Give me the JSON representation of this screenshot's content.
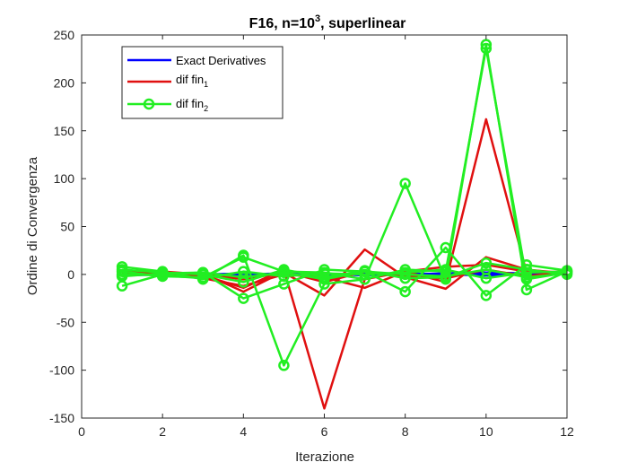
{
  "chart_data": {
    "type": "line",
    "title": {
      "prefix": "F16, n=10",
      "superscript": "3",
      "suffix": ", superlinear"
    },
    "xlabel": "Iterazione",
    "ylabel": "Ordine di Convergenza",
    "xlim": [
      0,
      12
    ],
    "ylim": [
      -150,
      250
    ],
    "xticks": [
      0,
      2,
      4,
      6,
      8,
      10,
      12
    ],
    "yticks": [
      -150,
      -100,
      -50,
      0,
      50,
      100,
      150,
      200,
      250
    ],
    "grid": false,
    "legend": {
      "placement": "top-left",
      "entries": [
        {
          "base": "Exact Derivatives",
          "sub": "",
          "color": "#0000ff",
          "marker": "none"
        },
        {
          "base": "dif fin",
          "sub": "1",
          "color": "#e01010",
          "marker": "none"
        },
        {
          "base": "dif fin",
          "sub": "2",
          "color": "#22ee22",
          "marker": "circle"
        }
      ]
    },
    "series": [
      {
        "group": "exact",
        "color": "#0000ff",
        "marker": "none",
        "x": [
          1,
          2,
          3,
          4,
          5,
          6,
          7,
          8,
          9,
          10,
          11,
          12
        ],
        "y": [
          2,
          1,
          -1,
          0,
          1,
          -1,
          1,
          0,
          1,
          2,
          1,
          1
        ]
      },
      {
        "group": "exact",
        "color": "#0000ff",
        "marker": "none",
        "x": [
          1,
          2,
          3,
          4,
          5,
          6,
          7,
          8,
          9,
          10,
          11,
          12
        ],
        "y": [
          -1,
          0,
          1,
          -2,
          0,
          1,
          -1,
          1,
          0,
          -1,
          0,
          1
        ]
      },
      {
        "group": "exact",
        "color": "#0000ff",
        "marker": "none",
        "x": [
          1,
          2,
          3,
          4,
          5,
          6,
          7,
          8,
          9,
          10,
          11,
          12
        ],
        "y": [
          0,
          1,
          0,
          1,
          -1,
          0,
          0,
          -1,
          1,
          0,
          1,
          0
        ]
      },
      {
        "group": "dif_fin_1",
        "color": "#e01010",
        "marker": "none",
        "x": [
          1,
          2,
          3,
          4,
          5,
          6,
          7,
          8,
          9,
          10,
          11,
          12
        ],
        "y": [
          3,
          2,
          -1,
          -14,
          5,
          -140,
          -5,
          3,
          -8,
          162,
          2,
          3
        ]
      },
      {
        "group": "dif_fin_1",
        "color": "#e01010",
        "marker": "none",
        "x": [
          1,
          2,
          3,
          4,
          5,
          6,
          7,
          8,
          9,
          10,
          11,
          12
        ],
        "y": [
          1,
          3,
          0,
          -5,
          2,
          -22,
          26,
          -3,
          -15,
          18,
          5,
          1
        ]
      },
      {
        "group": "dif_fin_1",
        "color": "#e01010",
        "marker": "none",
        "x": [
          1,
          2,
          3,
          4,
          5,
          6,
          7,
          8,
          9,
          10,
          11,
          12
        ],
        "y": [
          0,
          2,
          -4,
          -12,
          0,
          -3,
          -14,
          3,
          8,
          10,
          3,
          2
        ]
      },
      {
        "group": "dif_fin_1",
        "color": "#e01010",
        "marker": "none",
        "x": [
          1,
          2,
          3,
          4,
          5,
          6,
          7,
          8,
          9,
          10,
          11,
          12
        ],
        "y": [
          2,
          0,
          1,
          -18,
          3,
          -8,
          3,
          -2,
          -4,
          5,
          -2,
          3
        ]
      },
      {
        "group": "dif_fin_2",
        "color": "#22ee22",
        "marker": "circle",
        "x": [
          1,
          2,
          3,
          4,
          5,
          6,
          7,
          8,
          9,
          10,
          11,
          12
        ],
        "y": [
          8,
          3,
          -5,
          20,
          -95,
          -10,
          -5,
          95,
          -5,
          240,
          -16,
          3
        ]
      },
      {
        "group": "dif_fin_2",
        "color": "#22ee22",
        "marker": "circle",
        "x": [
          1,
          2,
          3,
          4,
          5,
          6,
          7,
          8,
          9,
          10,
          11,
          12
        ],
        "y": [
          -12,
          0,
          2,
          -25,
          -10,
          5,
          3,
          -18,
          28,
          -22,
          10,
          4
        ]
      },
      {
        "group": "dif_fin_2",
        "color": "#22ee22",
        "marker": "circle",
        "x": [
          1,
          2,
          3,
          4,
          5,
          6,
          7,
          8,
          9,
          10,
          11,
          12
        ],
        "y": [
          3,
          -2,
          -3,
          18,
          3,
          2,
          -5,
          5,
          3,
          236,
          -5,
          2
        ]
      },
      {
        "group": "dif_fin_2",
        "color": "#22ee22",
        "marker": "circle",
        "x": [
          1,
          2,
          3,
          4,
          5,
          6,
          7,
          8,
          9,
          10,
          11,
          12
        ],
        "y": [
          5,
          2,
          0,
          -8,
          5,
          -3,
          4,
          -4,
          -3,
          12,
          5,
          0
        ]
      },
      {
        "group": "dif_fin_2",
        "color": "#22ee22",
        "marker": "circle",
        "x": [
          1,
          2,
          3,
          4,
          5,
          6,
          7,
          8,
          9,
          10,
          11,
          12
        ],
        "y": [
          0,
          -1,
          -4,
          3,
          -2,
          1,
          0,
          2,
          5,
          -4,
          2,
          3
        ]
      },
      {
        "group": "dif_fin_2",
        "color": "#22ee22",
        "marker": "circle",
        "x": [
          1,
          2,
          3,
          4,
          5,
          6,
          7,
          8,
          9,
          10,
          11,
          12
        ],
        "y": [
          -2,
          1,
          2,
          -3,
          2,
          -5,
          3,
          0,
          -2,
          5,
          -3,
          1
        ]
      }
    ]
  }
}
